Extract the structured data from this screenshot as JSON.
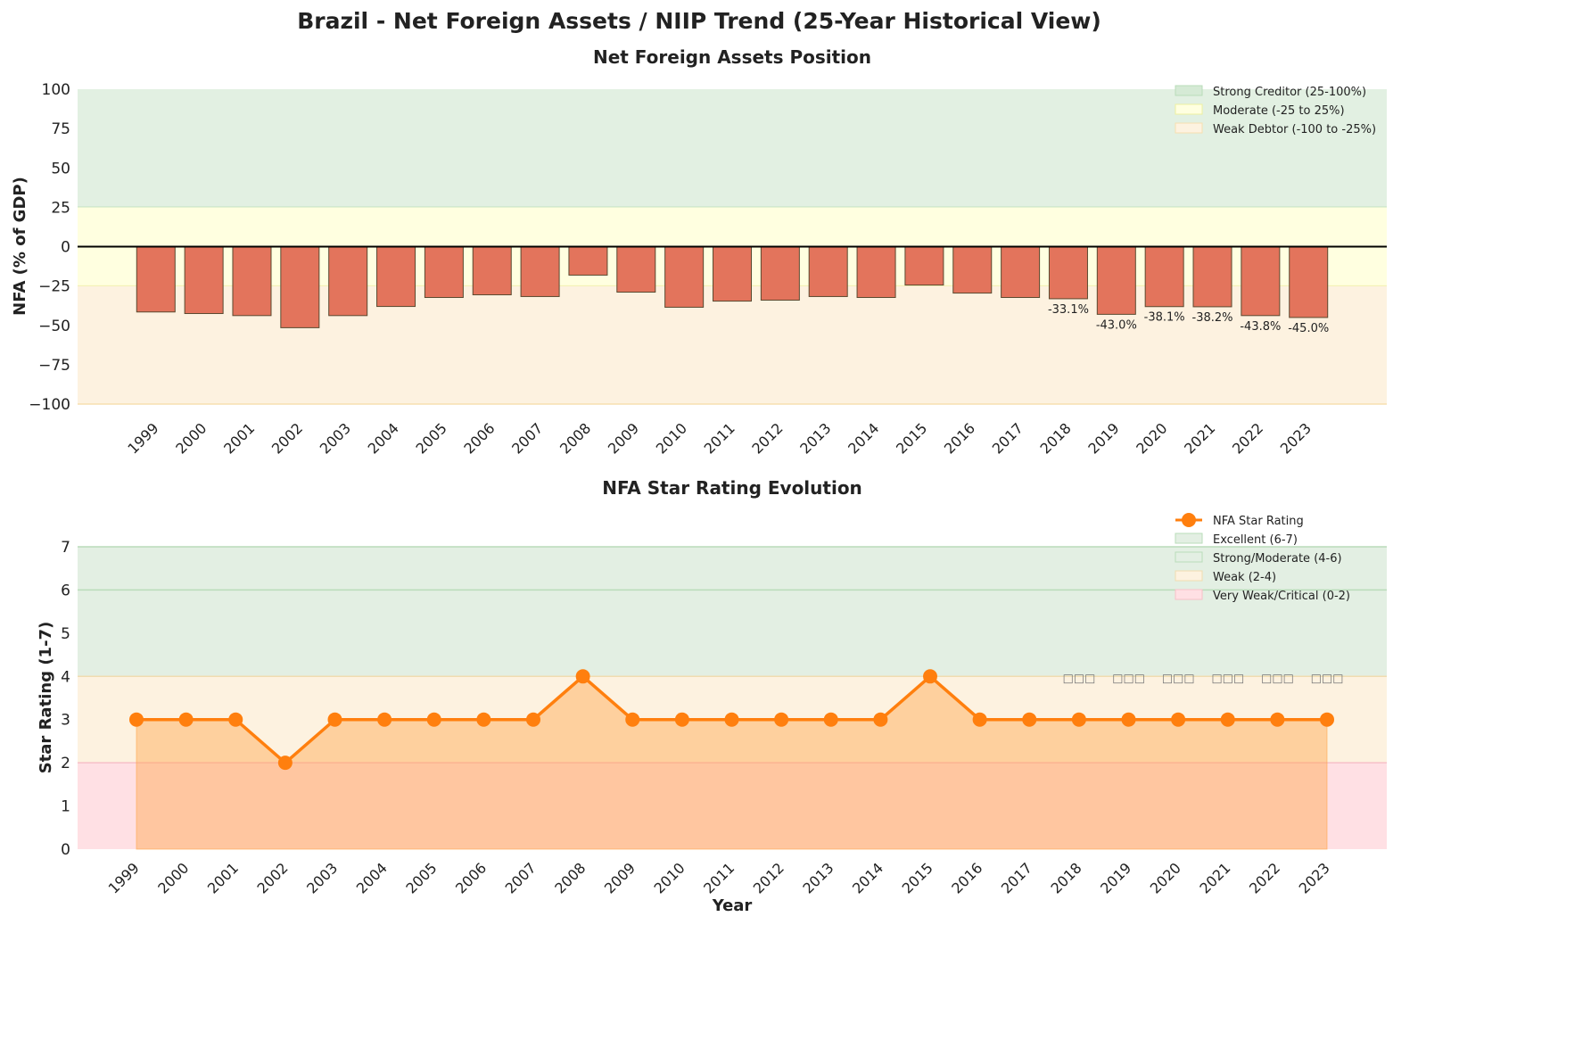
{
  "suptitle": "Brazil - Net Foreign Assets / NIIP Trend (25-Year Historical View)",
  "chart_data": [
    {
      "type": "bar",
      "title": "Net Foreign Assets Position",
      "xlabel": "",
      "ylabel": "NFA (% of GDP)",
      "ylim": [
        -100,
        100
      ],
      "yticks": [
        100,
        75,
        50,
        25,
        0,
        -25,
        -50,
        -75,
        -100
      ],
      "ytick_labels": [
        "100",
        "75",
        "50",
        "25",
        "0",
        "−25",
        "−50",
        "−75",
        "−100"
      ],
      "categories": [
        "1999",
        "2000",
        "2001",
        "2002",
        "2003",
        "2004",
        "2005",
        "2006",
        "2007",
        "2008",
        "2009",
        "2010",
        "2011",
        "2012",
        "2013",
        "2014",
        "2015",
        "2016",
        "2017",
        "2018",
        "2019",
        "2020",
        "2021",
        "2022",
        "2023"
      ],
      "values": [
        -41.5,
        -42.5,
        -43.8,
        -51.5,
        -43.8,
        -38.0,
        -32.3,
        -30.6,
        -31.7,
        -18.1,
        -28.9,
        -38.5,
        -34.6,
        -34.0,
        -31.7,
        -32.3,
        -24.4,
        -29.5,
        -32.3,
        -33.1,
        -43.0,
        -38.1,
        -38.2,
        -43.8,
        -45.0
      ],
      "data_labels": {
        "2018": "-33.1%",
        "2019": "-43.0%",
        "2020": "-38.1%",
        "2021": "-38.2%",
        "2022": "-43.8%",
        "2023": "-45.0%"
      },
      "bar_color": "#e3745c",
      "bands": [
        {
          "name": "Strong Creditor (25-100%)",
          "range": [
            25,
            100
          ],
          "color": "#d5ead5"
        },
        {
          "name": "Moderate (-25 to 25%)",
          "range": [
            -25,
            25
          ],
          "color": "#ffffe0"
        },
        {
          "name": "Weak Debtor (-100 to -25%)",
          "range": [
            -100,
            -25
          ],
          "color": "#fdf2e0"
        }
      ],
      "legend_position": "top-right",
      "grid": false
    },
    {
      "type": "line",
      "title": "NFA Star Rating Evolution",
      "xlabel": "Year",
      "ylabel": "Star Rating (1-7)",
      "ylim": [
        0,
        7
      ],
      "yticks": [
        0,
        1,
        2,
        3,
        4,
        5,
        6,
        7
      ],
      "categories": [
        "1999",
        "2000",
        "2001",
        "2002",
        "2003",
        "2004",
        "2005",
        "2006",
        "2007",
        "2008",
        "2009",
        "2010",
        "2011",
        "2012",
        "2013",
        "2014",
        "2015",
        "2016",
        "2017",
        "2018",
        "2019",
        "2020",
        "2021",
        "2022",
        "2023"
      ],
      "series": [
        {
          "name": "NFA Star Rating",
          "values": [
            3,
            3,
            3,
            2,
            3,
            3,
            3,
            3,
            3,
            4,
            3,
            3,
            3,
            3,
            3,
            3,
            4,
            3,
            3,
            3,
            3,
            3,
            3,
            3,
            3
          ],
          "color": "#ff7f0e"
        }
      ],
      "point_annotations": {
        "2018": "□□□",
        "2019": "□□□",
        "2020": "□□□",
        "2021": "□□□",
        "2022": "□□□",
        "2023": "□□□"
      },
      "bands": [
        {
          "name": "Excellent (6-7)",
          "range": [
            6,
            7
          ],
          "color": "#e3efe3"
        },
        {
          "name": "Strong/Moderate (4-6)",
          "range": [
            4,
            6
          ],
          "color": "#e3efe3"
        },
        {
          "name": "Weak (2-4)",
          "range": [
            2,
            4
          ],
          "color": "#fdf2e0"
        },
        {
          "name": "Very Weak/Critical (0-2)",
          "range": [
            0,
            2
          ],
          "color": "#ffe0e4"
        }
      ],
      "legend_position": "top-right",
      "grid": false
    }
  ]
}
